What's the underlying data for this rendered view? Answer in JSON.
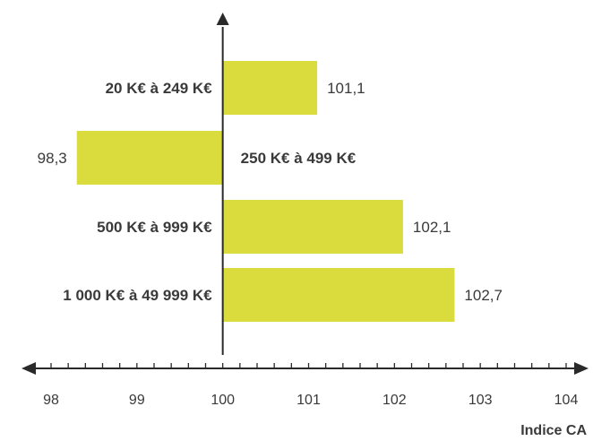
{
  "chart_data": {
    "type": "bar",
    "orientation": "horizontal",
    "baseline": 100,
    "categories": [
      "20 K€ à 249 K€",
      "250 K€ à 499 K€",
      "500 K€ à 999 K€",
      "1 000 K€ à 49 999 K€"
    ],
    "values": [
      101.1,
      98.3,
      102.1,
      102.7
    ],
    "value_labels": [
      "101,1",
      "98,3",
      "102,1",
      "102,7"
    ],
    "xlabel": "Indice CA",
    "xlim": [
      98,
      104
    ],
    "x_ticks": [
      98,
      99,
      100,
      101,
      102,
      103,
      104
    ],
    "x_tick_labels": [
      "98",
      "99",
      "100",
      "101",
      "102",
      "103",
      "104"
    ],
    "grid": false,
    "bar_color": "#d9dc3c",
    "axis_color": "#2a2a2a"
  }
}
